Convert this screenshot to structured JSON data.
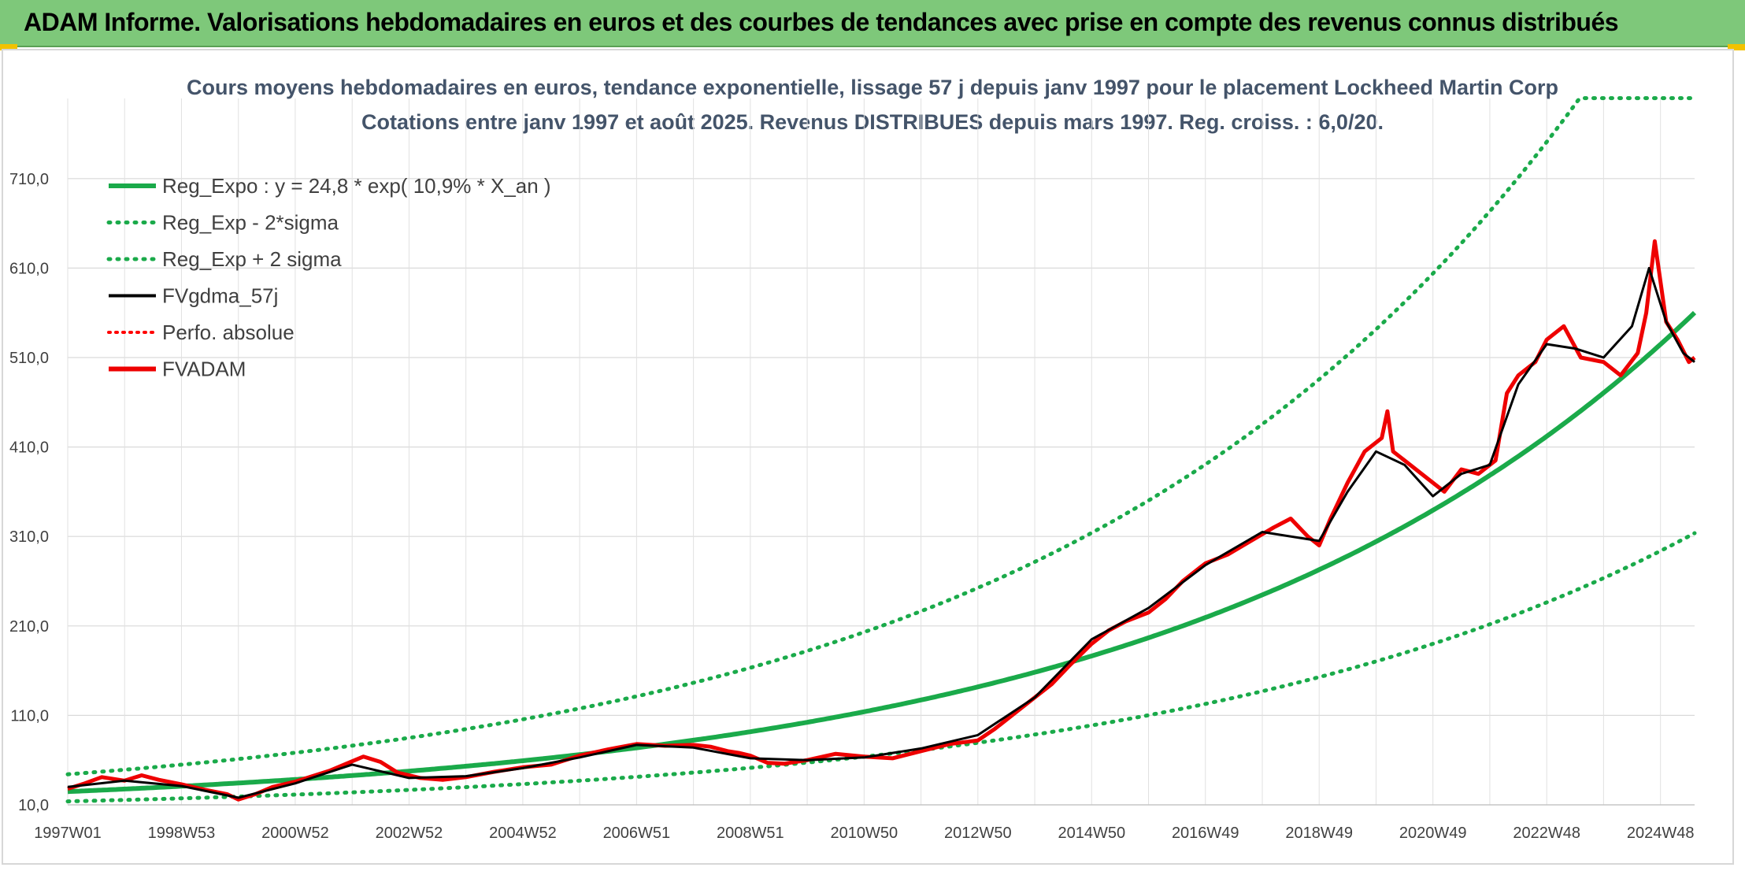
{
  "banner": {
    "title": "ADAM Informe. Valorisations hebdomadaires en euros et des courbes de tendances avec prise en compte des revenus connus distribués"
  },
  "colors": {
    "banner": "#7ec87a",
    "trend": "#1aaa4a",
    "smooth": "#000000",
    "adam": "#ee0000",
    "perfo": "#ff0000",
    "title": "#44546a"
  },
  "chart_data": {
    "type": "line",
    "title": "Cours moyens hebdomadaires en euros, tendance exponentielle, lissage 57 j depuis janv 1997 pour le placement Lockheed Martin Corp",
    "subtitle": "Cotations entre janv 1997 et août 2025. Revenus DISTRIBUES depuis mars 1997. Reg. croiss. : 6,0/20.",
    "xlabel": "",
    "ylabel": "",
    "xlim": [
      1997.0,
      2025.6
    ],
    "ylim": [
      10,
      800
    ],
    "y_ticks": [
      "10,0",
      "110,0",
      "210,0",
      "310,0",
      "410,0",
      "510,0",
      "610,0",
      "710,0"
    ],
    "y_tick_values": [
      10,
      110,
      210,
      310,
      410,
      510,
      610,
      710
    ],
    "x_ticks": [
      "1997W01",
      "1998W53",
      "2000W52",
      "2002W52",
      "2004W52",
      "2006W51",
      "2008W51",
      "2010W50",
      "2012W50",
      "2014W50",
      "2016W49",
      "2018W49",
      "2020W49",
      "2022W48",
      "2024W48"
    ],
    "x_tick_values": [
      1997.0,
      1999.0,
      2001.0,
      2003.0,
      2005.0,
      2007.0,
      2009.0,
      2011.0,
      2013.0,
      2015.0,
      2017.0,
      2019.0,
      2021.0,
      2023.0,
      2025.0
    ],
    "grid": true,
    "legend_position": "top-left",
    "series": [
      {
        "name": "Reg_Expo : y = 24,8 * exp( 10,9% *  X_an )",
        "style": "solid-thick",
        "color": "#1aaa4a",
        "model": {
          "a": 24.8,
          "b": 0.109
        }
      },
      {
        "name": "Reg_Exp - 2*sigma",
        "style": "dotted",
        "color": "#1aaa4a",
        "model": {
          "factor": 0.56
        }
      },
      {
        "name": "Reg_Exp + 2 sigma",
        "style": "dotted",
        "color": "#1aaa4a",
        "model": {
          "factor": 1.78,
          "cap": 800
        }
      },
      {
        "name": "FVgdma_57j",
        "style": "solid",
        "color": "#000000"
      },
      {
        "name": "Perfo. absolue",
        "style": "dotted",
        "color": "#ff0000"
      },
      {
        "name": "FVADAM",
        "style": "solid-thick",
        "color": "#ee0000"
      }
    ],
    "fvadam_points": {
      "x": [
        1997.0,
        1997.3,
        1997.6,
        1998.0,
        1998.3,
        1998.6,
        1999.0,
        1999.4,
        1999.8,
        2000.0,
        2000.3,
        2000.6,
        2001.0,
        2001.3,
        2001.6,
        2001.9,
        2002.2,
        2002.5,
        2002.8,
        2003.2,
        2003.6,
        2004.0,
        2004.5,
        2005.0,
        2005.5,
        2006.0,
        2006.5,
        2007.0,
        2007.5,
        2008.0,
        2008.3,
        2008.6,
        2008.8,
        2009.0,
        2009.3,
        2009.6,
        2010.0,
        2010.5,
        2011.0,
        2011.5,
        2012.0,
        2012.5,
        2013.0,
        2013.3,
        2013.6,
        2014.0,
        2014.3,
        2014.6,
        2015.0,
        2015.3,
        2015.6,
        2016.0,
        2016.3,
        2016.6,
        2017.0,
        2017.4,
        2017.8,
        2018.2,
        2018.5,
        2018.8,
        2019.0,
        2019.2,
        2019.5,
        2019.8,
        2020.1,
        2020.2,
        2020.3,
        2020.5,
        2020.9,
        2021.2,
        2021.5,
        2021.8,
        2022.1,
        2022.3,
        2022.5,
        2022.8,
        2023.0,
        2023.3,
        2023.6,
        2024.0,
        2024.3,
        2024.6,
        2024.75,
        2024.9,
        2025.1,
        2025.3,
        2025.5,
        2025.6
      ],
      "y": [
        28,
        34,
        41,
        37,
        43,
        38,
        33,
        27,
        22,
        16,
        22,
        30,
        36,
        42,
        48,
        56,
        64,
        58,
        46,
        40,
        38,
        41,
        47,
        52,
        55,
        65,
        72,
        78,
        76,
        77,
        75,
        70,
        68,
        65,
        57,
        56,
        60,
        67,
        64,
        62,
        70,
        78,
        82,
        95,
        110,
        130,
        145,
        165,
        190,
        205,
        215,
        225,
        240,
        260,
        280,
        290,
        305,
        320,
        330,
        310,
        300,
        330,
        370,
        405,
        420,
        450,
        405,
        395,
        375,
        360,
        385,
        380,
        395,
        470,
        490,
        505,
        530,
        545,
        510,
        505,
        490,
        515,
        560,
        640,
        550,
        530,
        505,
        510
      ]
    },
    "fvgdma_points": {
      "x": [
        1997.0,
        1998.0,
        1999.0,
        2000.0,
        2001.0,
        2002.0,
        2003.0,
        2004.0,
        2005.0,
        2006.0,
        2007.0,
        2008.0,
        2009.0,
        2010.0,
        2011.0,
        2012.0,
        2013.0,
        2014.0,
        2015.0,
        2016.0,
        2017.0,
        2018.0,
        2019.0,
        2019.5,
        2020.0,
        2020.5,
        2021.0,
        2021.5,
        2022.0,
        2022.5,
        2023.0,
        2023.5,
        2024.0,
        2024.5,
        2024.8,
        2025.1,
        2025.4,
        2025.6
      ],
      "y": [
        30,
        37,
        31,
        18,
        34,
        55,
        40,
        42,
        51,
        63,
        77,
        74,
        62,
        60,
        63,
        73,
        88,
        130,
        195,
        230,
        278,
        315,
        305,
        360,
        405,
        390,
        355,
        380,
        390,
        480,
        525,
        520,
        510,
        545,
        610,
        550,
        515,
        505
      ]
    }
  }
}
